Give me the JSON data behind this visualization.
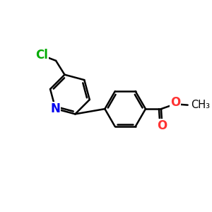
{
  "background_color": "#ffffff",
  "bond_color": "#000000",
  "N_color": "#0000ee",
  "Cl_color": "#00aa00",
  "O_color": "#ff3333",
  "bond_width": 1.8,
  "font_size": 12,
  "figsize": [
    3.0,
    3.0
  ],
  "dpi": 100,
  "xlim": [
    0,
    10
  ],
  "ylim": [
    0,
    10
  ]
}
